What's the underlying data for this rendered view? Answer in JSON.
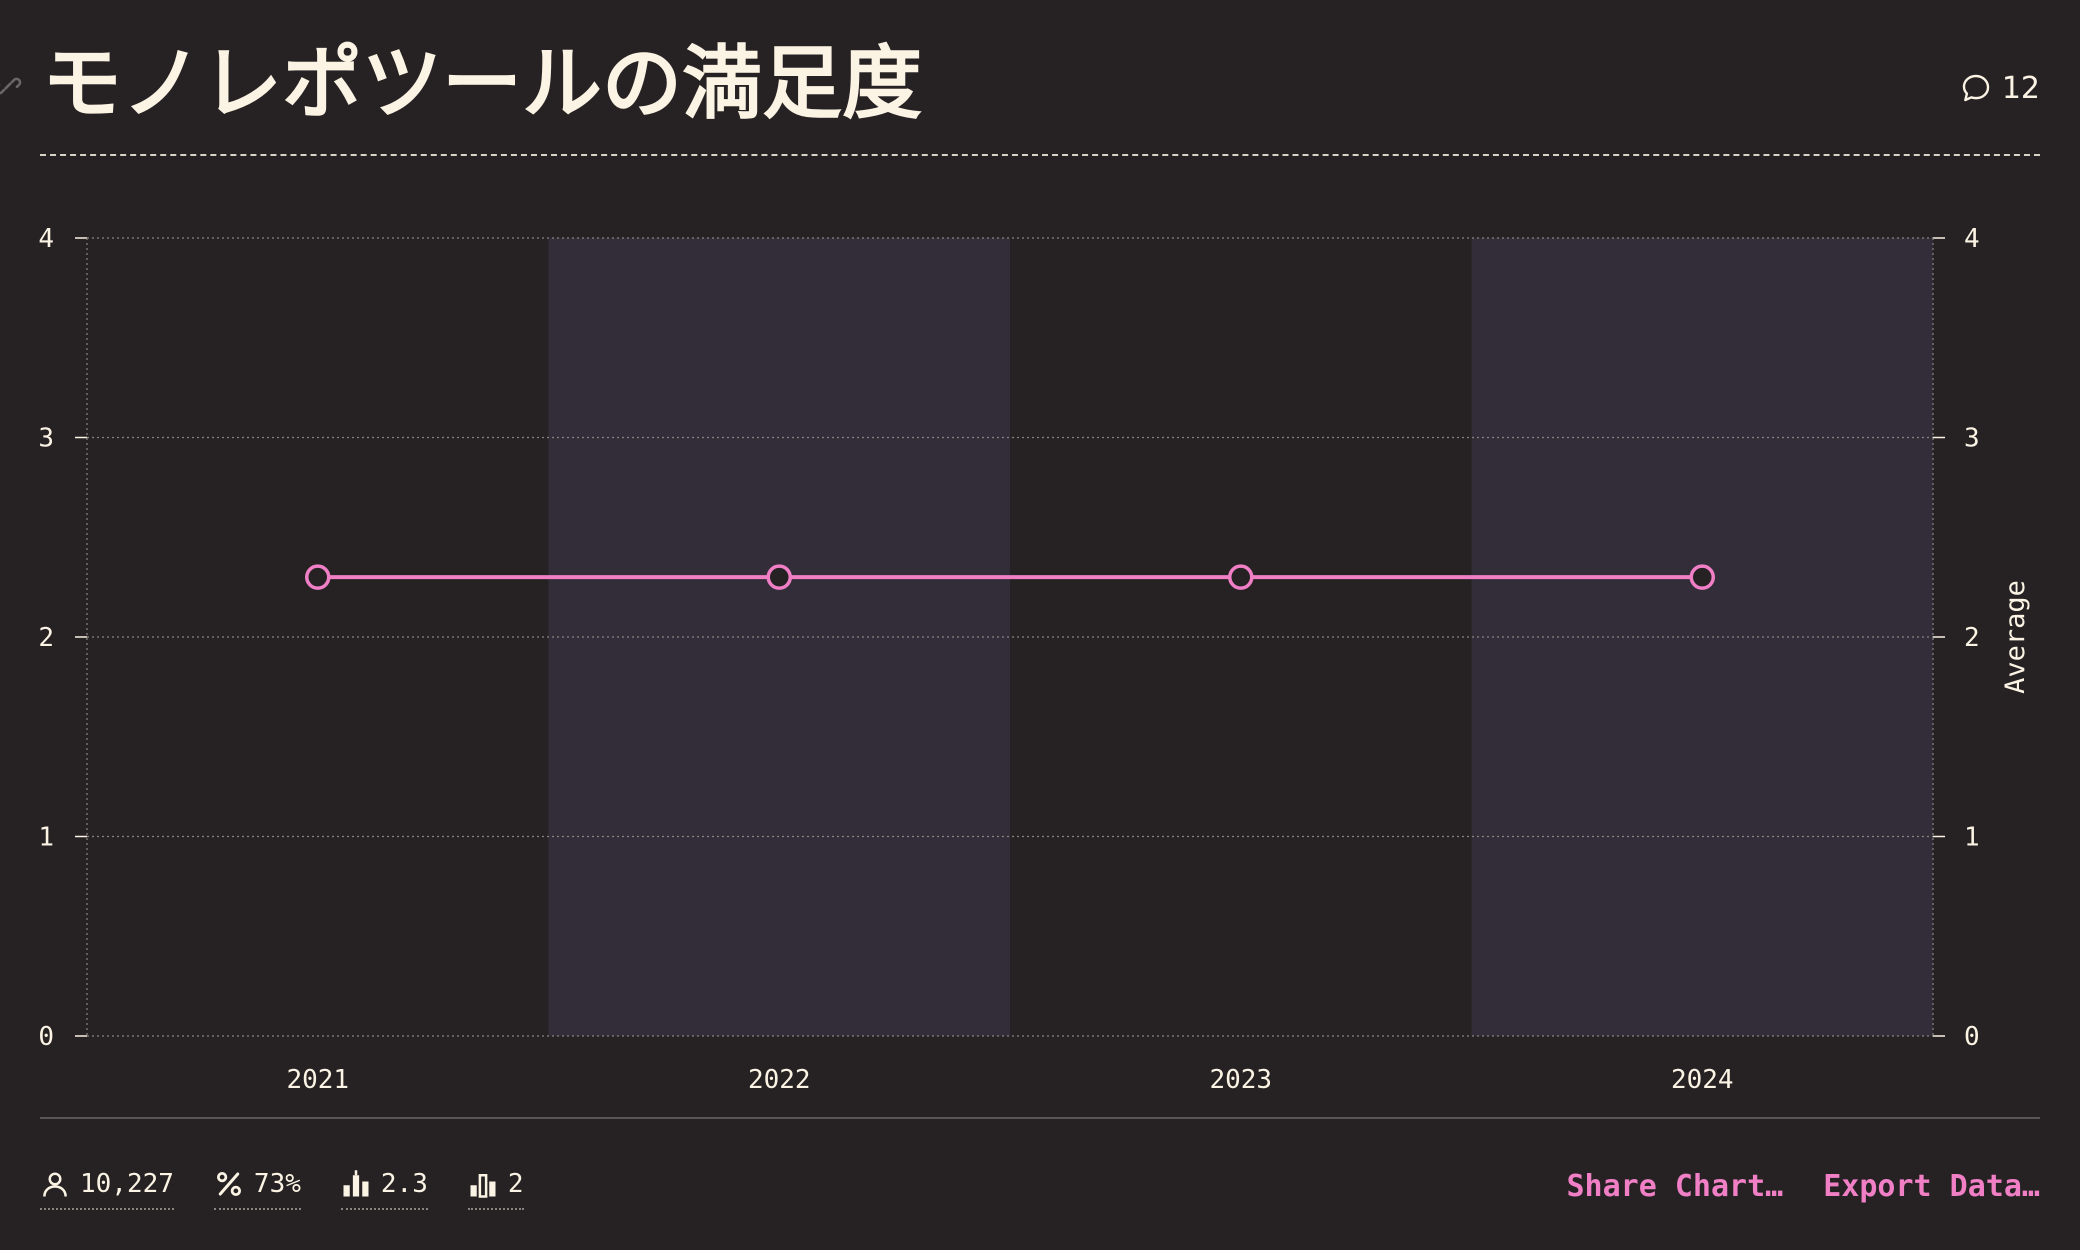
{
  "header": {
    "title": "モノレポツールの満足度",
    "comment_count": "12"
  },
  "chart_data": {
    "type": "line",
    "categories": [
      "2021",
      "2022",
      "2023",
      "2024"
    ],
    "series": [
      {
        "values": [
          2.3,
          2.3,
          2.3,
          2.3
        ]
      }
    ],
    "ylim": [
      0,
      4
    ],
    "yticks": [
      "0",
      "1",
      "2",
      "3",
      "4"
    ],
    "y2label": "Average",
    "grid": true,
    "alternating_column_shading": true
  },
  "footer": {
    "stats": [
      {
        "icon": "user-icon",
        "value": "10,227"
      },
      {
        "icon": "percent-icon",
        "value": "73%"
      },
      {
        "icon": "average-bars-icon",
        "value": "2.3"
      },
      {
        "icon": "median-bars-icon",
        "value": "2"
      }
    ],
    "actions": {
      "share": "Share Chart…",
      "export": "Export Data…"
    }
  },
  "colors": {
    "background": "#262223",
    "band": "#322d39",
    "text": "#fbf3e4",
    "line": "#f07fc6",
    "accent": "#f07fc6"
  }
}
